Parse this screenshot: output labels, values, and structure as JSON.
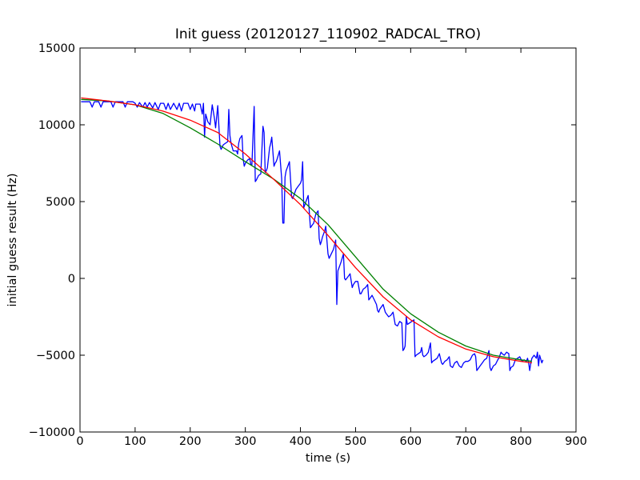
{
  "chart_data": {
    "type": "line",
    "title": "Init guess (20120127_110902_RADCAL_TRO)",
    "xlabel": "time (s)",
    "ylabel": "initial guess result (Hz)",
    "xlim": [
      0,
      900
    ],
    "ylim": [
      -10000,
      15000
    ],
    "xticks": [
      0,
      100,
      200,
      300,
      400,
      500,
      600,
      700,
      800,
      900
    ],
    "yticks": [
      -10000,
      -5000,
      0,
      5000,
      10000,
      15000
    ],
    "grid": false,
    "legend": "none",
    "series": [
      {
        "color": "#0000ff",
        "points": [
          [
            2,
            11500
          ],
          [
            12,
            11500
          ],
          [
            18,
            11500
          ],
          [
            22,
            11150
          ],
          [
            26,
            11500
          ],
          [
            34,
            11500
          ],
          [
            38,
            11150
          ],
          [
            42,
            11500
          ],
          [
            50,
            11500
          ],
          [
            56,
            11500
          ],
          [
            60,
            11150
          ],
          [
            64,
            11500
          ],
          [
            72,
            11500
          ],
          [
            78,
            11500
          ],
          [
            82,
            11150
          ],
          [
            86,
            11500
          ],
          [
            96,
            11500
          ],
          [
            100,
            11400
          ],
          [
            104,
            11150
          ],
          [
            108,
            11450
          ],
          [
            114,
            11150
          ],
          [
            118,
            11450
          ],
          [
            122,
            11150
          ],
          [
            126,
            11450
          ],
          [
            132,
            11100
          ],
          [
            136,
            11450
          ],
          [
            142,
            11000
          ],
          [
            146,
            11400
          ],
          [
            152,
            11400
          ],
          [
            156,
            11000
          ],
          [
            160,
            11400
          ],
          [
            164,
            11000
          ],
          [
            170,
            11400
          ],
          [
            176,
            11000
          ],
          [
            180,
            11400
          ],
          [
            184,
            10900
          ],
          [
            188,
            11400
          ],
          [
            196,
            11400
          ],
          [
            200,
            11000
          ],
          [
            204,
            11350
          ],
          [
            208,
            10900
          ],
          [
            210,
            11350
          ],
          [
            218,
            11350
          ],
          [
            222,
            10700
          ],
          [
            224,
            11400
          ],
          [
            226,
            9200
          ],
          [
            228,
            10700
          ],
          [
            232,
            10200
          ],
          [
            236,
            10000
          ],
          [
            240,
            11300
          ],
          [
            244,
            10400
          ],
          [
            246,
            9800
          ],
          [
            250,
            11250
          ],
          [
            254,
            8600
          ],
          [
            256,
            8400
          ],
          [
            260,
            8700
          ],
          [
            264,
            8800
          ],
          [
            268,
            8900
          ],
          [
            270,
            11000
          ],
          [
            272,
            9300
          ],
          [
            274,
            8800
          ],
          [
            278,
            8300
          ],
          [
            280,
            8300
          ],
          [
            284,
            8300
          ],
          [
            286,
            8100
          ],
          [
            288,
            8800
          ],
          [
            290,
            9100
          ],
          [
            294,
            9300
          ],
          [
            296,
            7800
          ],
          [
            298,
            7300
          ],
          [
            300,
            7500
          ],
          [
            304,
            7700
          ],
          [
            308,
            7800
          ],
          [
            310,
            7400
          ],
          [
            312,
            7400
          ],
          [
            316,
            11200
          ],
          [
            318,
            6300
          ],
          [
            320,
            6400
          ],
          [
            324,
            6700
          ],
          [
            328,
            6800
          ],
          [
            332,
            9900
          ],
          [
            334,
            9500
          ],
          [
            336,
            6900
          ],
          [
            338,
            7000
          ],
          [
            340,
            7200
          ],
          [
            344,
            8500
          ],
          [
            346,
            8800
          ],
          [
            348,
            9200
          ],
          [
            352,
            7300
          ],
          [
            354,
            7500
          ],
          [
            356,
            7600
          ],
          [
            358,
            7800
          ],
          [
            362,
            8300
          ],
          [
            366,
            6500
          ],
          [
            368,
            3600
          ],
          [
            370,
            3600
          ],
          [
            372,
            6600
          ],
          [
            374,
            7000
          ],
          [
            376,
            7200
          ],
          [
            378,
            7400
          ],
          [
            380,
            7600
          ],
          [
            384,
            5300
          ],
          [
            386,
            5200
          ],
          [
            388,
            5400
          ],
          [
            392,
            5800
          ],
          [
            396,
            6000
          ],
          [
            400,
            6200
          ],
          [
            402,
            6400
          ],
          [
            404,
            7600
          ],
          [
            406,
            4600
          ],
          [
            408,
            4800
          ],
          [
            410,
            5000
          ],
          [
            414,
            5400
          ],
          [
            418,
            3300
          ],
          [
            420,
            3400
          ],
          [
            424,
            3600
          ],
          [
            428,
            4200
          ],
          [
            432,
            4400
          ],
          [
            434,
            2600
          ],
          [
            436,
            2200
          ],
          [
            438,
            2400
          ],
          [
            440,
            2700
          ],
          [
            442,
            2900
          ],
          [
            444,
            3100
          ],
          [
            446,
            3400
          ],
          [
            450,
            1600
          ],
          [
            452,
            1300
          ],
          [
            456,
            1600
          ],
          [
            460,
            1900
          ],
          [
            462,
            2200
          ],
          [
            464,
            2500
          ],
          [
            466,
            -1700
          ],
          [
            468,
            500
          ],
          [
            470,
            700
          ],
          [
            472,
            900
          ],
          [
            474,
            1100
          ],
          [
            478,
            1600
          ],
          [
            480,
            0
          ],
          [
            482,
            -100
          ],
          [
            486,
            100
          ],
          [
            490,
            300
          ],
          [
            494,
            -600
          ],
          [
            496,
            -400
          ],
          [
            500,
            -200
          ],
          [
            504,
            -200
          ],
          [
            508,
            -1000
          ],
          [
            510,
            -1000
          ],
          [
            514,
            -700
          ],
          [
            518,
            -600
          ],
          [
            522,
            -400
          ],
          [
            524,
            -1400
          ],
          [
            526,
            -1300
          ],
          [
            530,
            -1100
          ],
          [
            534,
            -1400
          ],
          [
            538,
            -1700
          ],
          [
            540,
            -2100
          ],
          [
            542,
            -2200
          ],
          [
            544,
            -2000
          ],
          [
            546,
            -1900
          ],
          [
            550,
            -1700
          ],
          [
            554,
            -2200
          ],
          [
            556,
            -2300
          ],
          [
            560,
            -2500
          ],
          [
            564,
            -2400
          ],
          [
            568,
            -2200
          ],
          [
            572,
            -3000
          ],
          [
            576,
            -3100
          ],
          [
            580,
            -2800
          ],
          [
            584,
            -2900
          ],
          [
            586,
            -4700
          ],
          [
            588,
            -4600
          ],
          [
            590,
            -4400
          ],
          [
            592,
            -2500
          ],
          [
            594,
            -3000
          ],
          [
            598,
            -2900
          ],
          [
            602,
            -2800
          ],
          [
            606,
            -2700
          ],
          [
            608,
            -5100
          ],
          [
            610,
            -5000
          ],
          [
            614,
            -4900
          ],
          [
            618,
            -4800
          ],
          [
            620,
            -4500
          ],
          [
            622,
            -5000
          ],
          [
            624,
            -5100
          ],
          [
            628,
            -5000
          ],
          [
            632,
            -4800
          ],
          [
            636,
            -4200
          ],
          [
            638,
            -5500
          ],
          [
            640,
            -5400
          ],
          [
            644,
            -5300
          ],
          [
            648,
            -5200
          ],
          [
            652,
            -4900
          ],
          [
            656,
            -5500
          ],
          [
            658,
            -5600
          ],
          [
            662,
            -5400
          ],
          [
            666,
            -5300
          ],
          [
            670,
            -5100
          ],
          [
            672,
            -5700
          ],
          [
            676,
            -5800
          ],
          [
            680,
            -5500
          ],
          [
            684,
            -5400
          ],
          [
            688,
            -5700
          ],
          [
            692,
            -5800
          ],
          [
            696,
            -5500
          ],
          [
            700,
            -5400
          ],
          [
            704,
            -5400
          ],
          [
            708,
            -5300
          ],
          [
            712,
            -5000
          ],
          [
            716,
            -4900
          ],
          [
            718,
            -5100
          ],
          [
            720,
            -6000
          ],
          [
            722,
            -5900
          ],
          [
            726,
            -5700
          ],
          [
            730,
            -5500
          ],
          [
            734,
            -5300
          ],
          [
            738,
            -5200
          ],
          [
            742,
            -4700
          ],
          [
            744,
            -5800
          ],
          [
            746,
            -6000
          ],
          [
            750,
            -5700
          ],
          [
            754,
            -5600
          ],
          [
            758,
            -5300
          ],
          [
            760,
            -5200
          ],
          [
            764,
            -4800
          ],
          [
            766,
            -4900
          ],
          [
            770,
            -5000
          ],
          [
            774,
            -4800
          ],
          [
            778,
            -4900
          ],
          [
            780,
            -6000
          ],
          [
            782,
            -5800
          ],
          [
            786,
            -5700
          ],
          [
            790,
            -5300
          ],
          [
            794,
            -5200
          ],
          [
            798,
            -5100
          ],
          [
            802,
            -5400
          ],
          [
            806,
            -5300
          ],
          [
            810,
            -5400
          ],
          [
            812,
            -5200
          ],
          [
            814,
            -5500
          ],
          [
            816,
            -6000
          ],
          [
            818,
            -5500
          ],
          [
            820,
            -5200
          ],
          [
            824,
            -5000
          ],
          [
            828,
            -5200
          ],
          [
            830,
            -4800
          ],
          [
            832,
            -5700
          ],
          [
            834,
            -5000
          ],
          [
            838,
            -5500
          ],
          [
            840,
            -5300
          ]
        ]
      },
      {
        "color": "#008000",
        "points": [
          [
            2,
            11650
          ],
          [
            50,
            11550
          ],
          [
            100,
            11300
          ],
          [
            150,
            10750
          ],
          [
            200,
            9800
          ],
          [
            250,
            8750
          ],
          [
            300,
            7600
          ],
          [
            350,
            6500
          ],
          [
            400,
            5200
          ],
          [
            450,
            3500
          ],
          [
            500,
            1400
          ],
          [
            550,
            -700
          ],
          [
            600,
            -2300
          ],
          [
            650,
            -3500
          ],
          [
            700,
            -4400
          ],
          [
            750,
            -5000
          ],
          [
            800,
            -5300
          ],
          [
            820,
            -5400
          ]
        ]
      },
      {
        "color": "#ff0000",
        "points": [
          [
            2,
            11750
          ],
          [
            50,
            11550
          ],
          [
            100,
            11300
          ],
          [
            150,
            10900
          ],
          [
            200,
            10300
          ],
          [
            250,
            9500
          ],
          [
            300,
            8100
          ],
          [
            350,
            6500
          ],
          [
            400,
            4800
          ],
          [
            450,
            2800
          ],
          [
            500,
            700
          ],
          [
            550,
            -1200
          ],
          [
            600,
            -2700
          ],
          [
            650,
            -3800
          ],
          [
            700,
            -4600
          ],
          [
            750,
            -5100
          ],
          [
            800,
            -5400
          ],
          [
            820,
            -5500
          ]
        ]
      }
    ]
  }
}
